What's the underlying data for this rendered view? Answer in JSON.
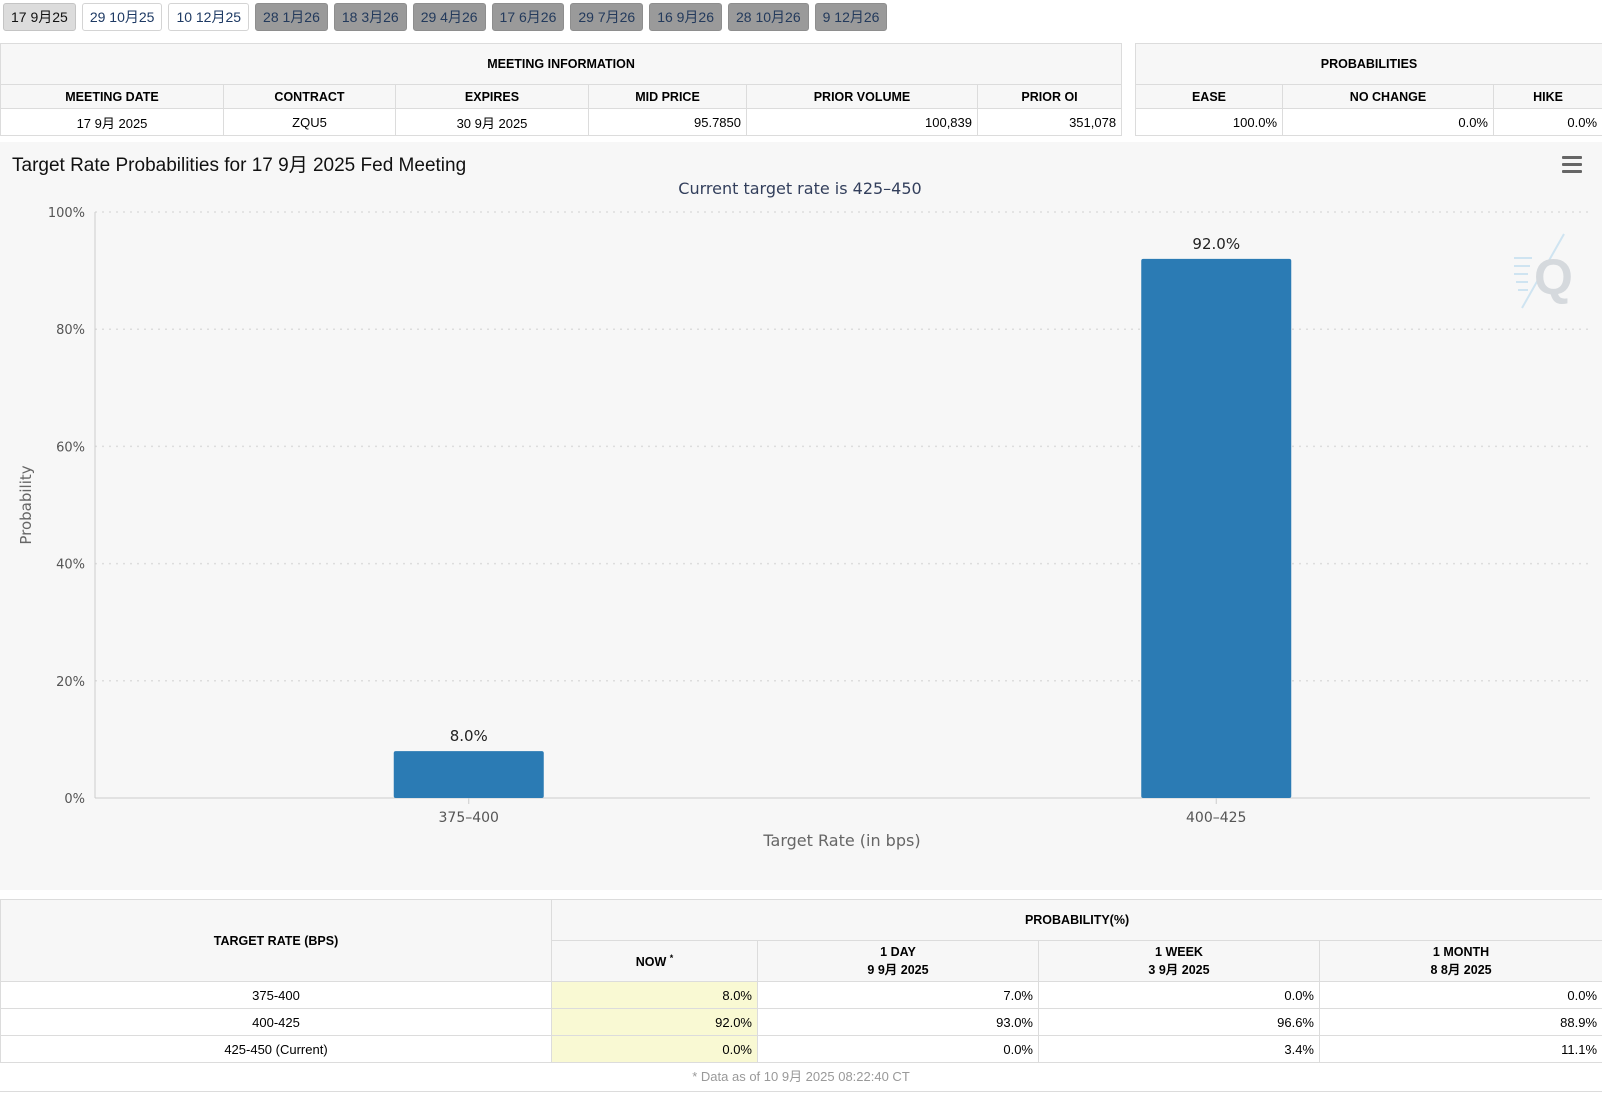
{
  "tabs": [
    {
      "label": "17 9月25",
      "state": "active"
    },
    {
      "label": "29 10月25",
      "state": "light"
    },
    {
      "label": "10 12月25",
      "state": "light"
    },
    {
      "label": "28 1月26",
      "state": "dark"
    },
    {
      "label": "18 3月26",
      "state": "dark"
    },
    {
      "label": "29 4月26",
      "state": "dark"
    },
    {
      "label": "17 6月26",
      "state": "dark"
    },
    {
      "label": "29 7月26",
      "state": "dark"
    },
    {
      "label": "16 9月26",
      "state": "dark"
    },
    {
      "label": "28 10月26",
      "state": "dark"
    },
    {
      "label": "9 12月26",
      "state": "dark"
    }
  ],
  "meeting_info": {
    "title": "MEETING INFORMATION",
    "headers": [
      "MEETING DATE",
      "CONTRACT",
      "EXPIRES",
      "MID PRICE",
      "PRIOR VOLUME",
      "PRIOR OI"
    ],
    "row": [
      "17 9月 2025",
      "ZQU5",
      "30 9月 2025",
      "95.7850",
      "100,839",
      "351,078"
    ]
  },
  "probabilities": {
    "title": "PROBABILITIES",
    "headers": [
      "EASE",
      "NO CHANGE",
      "HIKE"
    ],
    "row": [
      "100.0%",
      "0.0%",
      "0.0%"
    ]
  },
  "chart_data": {
    "type": "bar",
    "title": "Target Rate Probabilities for 17 9月 2025 Fed Meeting",
    "subtitle": "Current target rate is 425–450",
    "xlabel": "Target Rate (in bps)",
    "ylabel": "Probability",
    "categories": [
      "375–400",
      "400–425"
    ],
    "values": [
      8.0,
      92.0
    ],
    "value_labels": [
      "8.0%",
      "92.0%"
    ],
    "ylim": [
      0,
      100
    ],
    "yticks": [
      0,
      20,
      40,
      60,
      80,
      100
    ],
    "ytick_labels": [
      "0%",
      "20%",
      "40%",
      "60%",
      "80%",
      "100%"
    ],
    "bar_color": "#2b7bb4",
    "grid": true,
    "legend": "none"
  },
  "bottom_table": {
    "target_header": "TARGET RATE (BPS)",
    "prob_header": "PROBABILITY(%)",
    "columns": [
      {
        "label": "NOW",
        "sup": "*",
        "date": ""
      },
      {
        "label": "1 DAY",
        "date": "9 9月 2025"
      },
      {
        "label": "1 WEEK",
        "date": "3 9月 2025"
      },
      {
        "label": "1 MONTH",
        "date": "8 8月 2025"
      }
    ],
    "rows": [
      {
        "rate": "375-400",
        "values": [
          "8.0%",
          "7.0%",
          "0.0%",
          "0.0%"
        ]
      },
      {
        "rate": "400-425",
        "values": [
          "92.0%",
          "93.0%",
          "96.6%",
          "88.9%"
        ]
      },
      {
        "rate": "425-450 (Current)",
        "values": [
          "0.0%",
          "0.0%",
          "3.4%",
          "11.1%"
        ]
      }
    ],
    "footnote": "* Data as of 10 9月 2025 08:22:40 CT"
  },
  "icons": {
    "menu": "hamburger-menu-icon",
    "watermark": "q-logo-watermark"
  }
}
